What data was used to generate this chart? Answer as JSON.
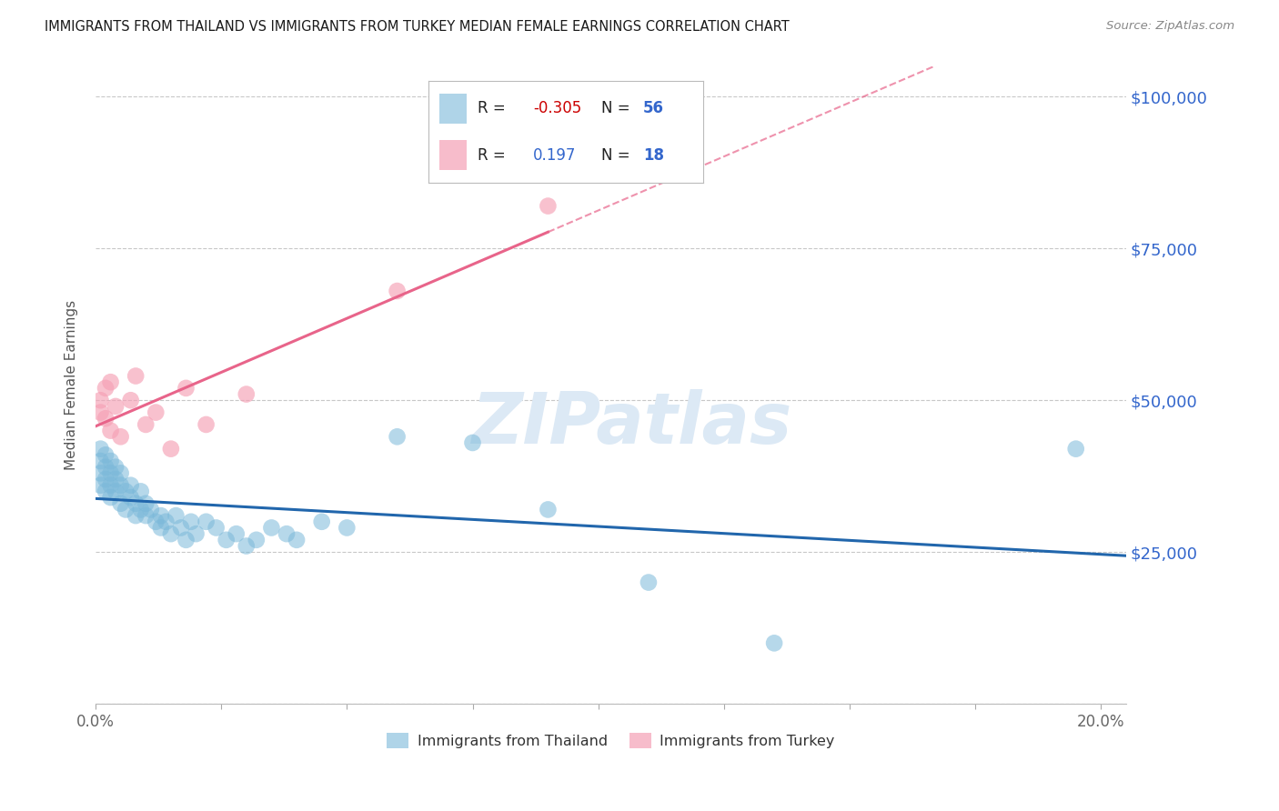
{
  "title": "IMMIGRANTS FROM THAILAND VS IMMIGRANTS FROM TURKEY MEDIAN FEMALE EARNINGS CORRELATION CHART",
  "source": "Source: ZipAtlas.com",
  "ylabel": "Median Female Earnings",
  "xlim": [
    0.0,
    0.205
  ],
  "ylim": [
    0,
    105000
  ],
  "yticks": [
    0,
    25000,
    50000,
    75000,
    100000
  ],
  "ytick_labels": [
    "",
    "$25,000",
    "$50,000",
    "$75,000",
    "$100,000"
  ],
  "xticks": [
    0.0,
    0.025,
    0.05,
    0.075,
    0.1,
    0.125,
    0.15,
    0.175,
    0.2
  ],
  "xtick_labels": [
    "0.0%",
    "",
    "",
    "",
    "",
    "",
    "",
    "",
    "20.0%"
  ],
  "thailand_color": "#7ab8d9",
  "turkey_color": "#f5a0b5",
  "thailand_line_color": "#2166ac",
  "turkey_line_color": "#e8648a",
  "thailand_R": -0.305,
  "thailand_N": 56,
  "turkey_R": 0.197,
  "turkey_N": 18,
  "background_color": "#ffffff",
  "grid_color": "#c8c8c8",
  "right_axis_color": "#3366cc",
  "title_color": "#1a1a1a",
  "thailand_x": [
    0.001,
    0.001,
    0.001,
    0.001,
    0.002,
    0.002,
    0.002,
    0.002,
    0.003,
    0.003,
    0.003,
    0.003,
    0.004,
    0.004,
    0.004,
    0.005,
    0.005,
    0.005,
    0.006,
    0.006,
    0.007,
    0.007,
    0.008,
    0.008,
    0.009,
    0.009,
    0.01,
    0.01,
    0.011,
    0.012,
    0.013,
    0.013,
    0.014,
    0.015,
    0.016,
    0.017,
    0.018,
    0.019,
    0.02,
    0.022,
    0.024,
    0.026,
    0.028,
    0.03,
    0.032,
    0.035,
    0.038,
    0.04,
    0.045,
    0.05,
    0.06,
    0.075,
    0.09,
    0.11,
    0.135,
    0.195
  ],
  "thailand_y": [
    40000,
    38000,
    36000,
    42000,
    37000,
    39000,
    35000,
    41000,
    36000,
    38000,
    40000,
    34000,
    37000,
    35000,
    39000,
    33000,
    36000,
    38000,
    32000,
    35000,
    34000,
    36000,
    31000,
    33000,
    32000,
    35000,
    33000,
    31000,
    32000,
    30000,
    31000,
    29000,
    30000,
    28000,
    31000,
    29000,
    27000,
    30000,
    28000,
    30000,
    29000,
    27000,
    28000,
    26000,
    27000,
    29000,
    28000,
    27000,
    30000,
    29000,
    44000,
    43000,
    32000,
    20000,
    10000,
    42000
  ],
  "turkey_x": [
    0.001,
    0.001,
    0.002,
    0.002,
    0.003,
    0.003,
    0.004,
    0.005,
    0.007,
    0.008,
    0.01,
    0.012,
    0.015,
    0.018,
    0.022,
    0.03,
    0.06,
    0.09
  ],
  "turkey_y": [
    50000,
    48000,
    52000,
    47000,
    53000,
    45000,
    49000,
    44000,
    50000,
    54000,
    46000,
    48000,
    42000,
    52000,
    46000,
    51000,
    68000,
    82000
  ],
  "watermark_text": "ZIPatlas",
  "watermark_color": "#dce9f5"
}
